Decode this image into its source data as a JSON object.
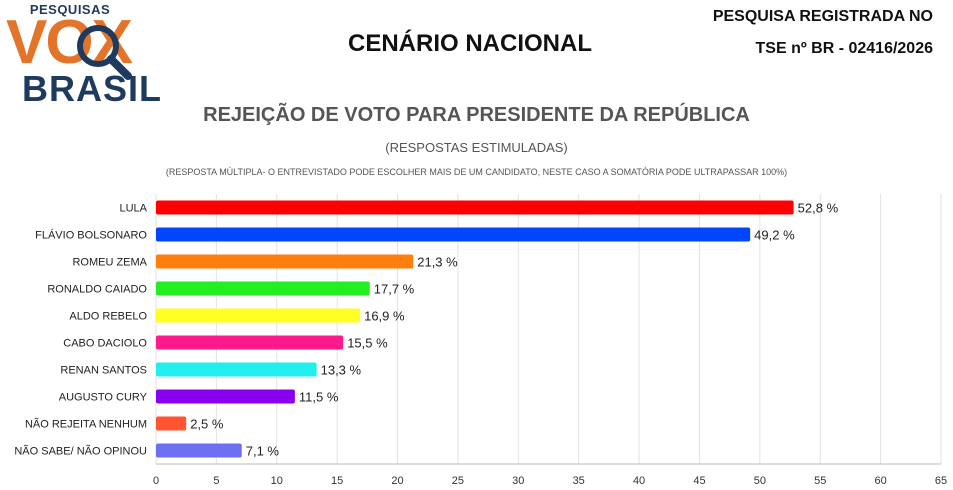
{
  "header": {
    "logo_top": "PESQUISAS",
    "logo_main": "VOX",
    "logo_bottom": "BRASIL",
    "title": "CENÁRIO NACIONAL",
    "registration_line1": "PESQUISA REGISTRADA NO",
    "registration_line2": "TSE nº BR - 02416/2026"
  },
  "colors": {
    "logo_orange": "#e3742a",
    "logo_navy": "#1e3a5f"
  },
  "chart_data": {
    "type": "bar",
    "orientation": "horizontal",
    "title": "REJEIÇÃO DE VOTO PARA PRESIDENTE DA REPÚBLICA",
    "subtitle": "(RESPOSTAS ESTIMULADAS)",
    "note": "(RESPOSTA MÚLTIPLA- O ENTREVISTADO PODE ESCOLHER MAIS DE UM CANDIDATO, NESTE CASO A SOMATÓRIA PODE ULTRAPASSAR 100%)",
    "categories": [
      "LULA",
      "FLÁVIO BOLSONARO",
      "ROMEU ZEMA",
      "RONALDO CAIADO",
      "ALDO REBELO",
      "CABO DACIOLO",
      "RENAN SANTOS",
      "AUGUSTO CURY",
      "NÃO REJEITA NENHUM",
      "NÃO SABE/ NÃO OPINOU"
    ],
    "values": [
      52.8,
      49.2,
      21.3,
      17.7,
      16.9,
      15.5,
      13.3,
      11.5,
      2.5,
      7.1
    ],
    "value_labels": [
      "52,8 %",
      "49,2 %",
      "21,3 %",
      "17,7 %",
      "16,9 %",
      "15,5 %",
      "13,3 %",
      "11,5 %",
      "2,5 %",
      "7,1 %"
    ],
    "colors": [
      "#ff0000",
      "#0046ff",
      "#ff7f0e",
      "#22ee22",
      "#ffff22",
      "#ff1a8c",
      "#22eeee",
      "#8800ee",
      "#ff5533",
      "#6f6ff2"
    ],
    "xlim": [
      0,
      65
    ],
    "xticks": [
      0,
      5,
      10,
      15,
      20,
      25,
      30,
      35,
      40,
      45,
      50,
      55,
      60,
      65
    ],
    "grid": true,
    "legend": "none"
  }
}
